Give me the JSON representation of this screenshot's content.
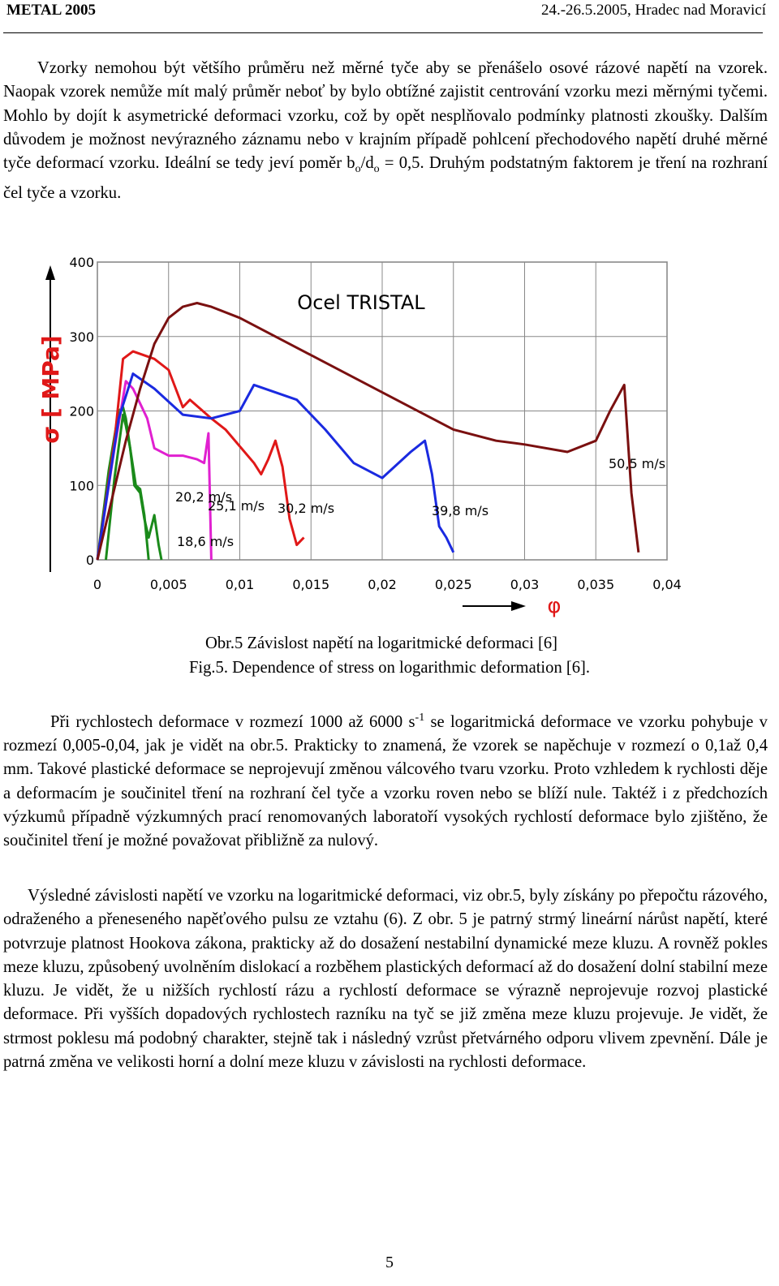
{
  "header": {
    "left": "METAL 2005",
    "right": "24.-26.5.2005, Hradec nad Moravicí"
  },
  "paragraphs": {
    "p1_a": "Vzorky nemohou být většího průměru než měrné tyče aby se přenášelo osové rázové napětí na vzorek. Naopak vzorek nemůže mít malý průměr neboť by bylo obtížné zajistit centrování vzorku mezi měrnými tyčemi. Mohlo by dojít k asymetrické deformaci vzorku, což by opět nesplňovalo podmínky platnosti zkoušky. Dalším důvodem je možnost nevýrazného záznamu nebo v krajním případě pohlcení přechodového napětí druhé měrné tyče deformací vzorku. Ideální se tedy jeví poměr b",
    "p1_sub1": "o",
    "p1_mid": "/d",
    "p1_sub2": "o",
    "p1_b": " = 0,5. Druhým podstatným faktorem je tření na rozhraní čel tyče a vzorku.",
    "p2_a": "Při rychlostech deformace v rozmezí 1000 až 6000 s",
    "p2_sup": "-1",
    "p2_b": " se logaritmická deformace ve vzorku pohybuje v rozmezí 0,005-0,04, jak je vidět na obr.5. Prakticky to znamená, že vzorek se napěchuje  v rozmezí o 0,1až 0,4 mm. Takové plastické deformace se neprojevují změnou válcového tvaru vzorku. Proto vzhledem k rychlosti děje a deformacím je součinitel tření na rozhraní čel tyče a vzorku roven nebo se blíží nule. Taktéž i z předchozích výzkumů případně výzkumných prací renomovaných laboratoří vysokých rychlostí deformace bylo zjištěno, že součinitel tření je možné považovat přibližně za nulový.",
    "p3": "Výsledné závislosti napětí ve vzorku na logaritmické deformaci, viz obr.5, byly získány po přepočtu rázového, odraženého a přeneseného napěťového pulsu ze vztahu (6). Z obr. 5 je patrný strmý lineární nárůst napětí, které potvrzuje platnost Hookova zákona, prakticky až do dosažení nestabilní dynamické meze kluzu. A rovněž pokles meze kluzu, způsobený uvolněním dislokací a rozběhem plastických deformací až do dosažení dolní stabilní meze kluzu. Je vidět, že u nižších rychlostí rázu a rychlostí deformace se výrazně neprojevuje rozvoj plastické deformace. Při vyšších dopadových rychlostech razníku na tyč se již změna meze kluzu projevuje. Je vidět, že strmost poklesu má podobný charakter, stejně tak i následný vzrůst přetvárného odporu vlivem zpevnění. Dále je patrná změna ve velikosti horní a dolní meze kluzu v závislosti na rychlosti deformace."
  },
  "captions": {
    "cz": "Obr.5  Závislost napětí na logaritmické deformaci [6]",
    "en": "Fig.5.  Dependence of stress on logarithmic deformation [6]."
  },
  "page_number": "5",
  "chart_data": {
    "type": "line",
    "title": "Ocel TRISTAL",
    "xlabel": "φ",
    "ylabel": "σ  [ MPa]",
    "xlim": [
      0,
      0.04
    ],
    "ylim": [
      0,
      400
    ],
    "x_ticks": [
      "0",
      "0,005",
      "0,01",
      "0,015",
      "0,02",
      "0,025",
      "0,03",
      "0,035",
      "0,04"
    ],
    "y_ticks": [
      "0",
      "100",
      "200",
      "300",
      "400"
    ],
    "grid": true,
    "colors": {
      "green": "#1a8a1a",
      "magenta": "#e020d0",
      "red": "#e01818",
      "blue": "#1a2ae0",
      "darkred": "#7a1010"
    },
    "series": [
      {
        "name": "18,6 m/s",
        "color": "green",
        "x": [
          0,
          0.0008,
          0.0015,
          0.0018,
          0.002,
          0.0023,
          0.0026,
          0.003,
          0.0033,
          0.0036,
          0.004,
          0.0043,
          0.0045
        ],
        "y": [
          0,
          120,
          200,
          205,
          190,
          150,
          100,
          90,
          55,
          30,
          60,
          20,
          0
        ]
      },
      {
        "name": "20,2 m/s",
        "color": "green",
        "x": [
          0.0006,
          0.0012,
          0.0018,
          0.002,
          0.0023,
          0.0027,
          0.003,
          0.0033,
          0.0036
        ],
        "y": [
          0,
          110,
          195,
          180,
          150,
          100,
          95,
          60,
          0
        ]
      },
      {
        "name": "25,1 m/s",
        "color": "magenta",
        "x": [
          0,
          0.0012,
          0.002,
          0.0025,
          0.003,
          0.0035,
          0.004,
          0.005,
          0.006,
          0.007,
          0.0075,
          0.0078,
          0.008
        ],
        "y": [
          0,
          150,
          240,
          230,
          210,
          190,
          150,
          140,
          140,
          135,
          130,
          170,
          0
        ]
      },
      {
        "name": "30,2 m/s",
        "color": "red",
        "x": [
          0,
          0.0012,
          0.0018,
          0.0025,
          0.004,
          0.005,
          0.006,
          0.0065,
          0.008,
          0.009,
          0.011,
          0.0115,
          0.012,
          0.0125,
          0.013,
          0.0135,
          0.014,
          0.0145
        ],
        "y": [
          0,
          160,
          270,
          280,
          270,
          255,
          205,
          215,
          190,
          175,
          130,
          115,
          135,
          160,
          125,
          55,
          20,
          30
        ]
      },
      {
        "name": "39,8 m/s",
        "color": "blue",
        "x": [
          0,
          0.0015,
          0.0025,
          0.004,
          0.006,
          0.008,
          0.01,
          0.011,
          0.014,
          0.016,
          0.018,
          0.02,
          0.022,
          0.023,
          0.0235,
          0.024,
          0.0245,
          0.025
        ],
        "y": [
          0,
          190,
          250,
          230,
          195,
          190,
          200,
          235,
          215,
          175,
          130,
          110,
          145,
          160,
          115,
          45,
          30,
          10
        ]
      },
      {
        "name": "50,5 m/s",
        "color": "darkred",
        "x": [
          0,
          0.002,
          0.003,
          0.004,
          0.005,
          0.006,
          0.007,
          0.008,
          0.01,
          0.015,
          0.02,
          0.025,
          0.028,
          0.03,
          0.033,
          0.035,
          0.036,
          0.037,
          0.0375,
          0.038
        ],
        "y": [
          0,
          160,
          230,
          290,
          325,
          340,
          345,
          340,
          325,
          275,
          225,
          175,
          160,
          155,
          145,
          160,
          200,
          235,
          90,
          10
        ]
      }
    ],
    "annotations": [
      "20,2 m/s",
      "18,6 m/s",
      "25,1 m/s",
      "30,2 m/s",
      "39,8 m/s",
      "50,5 m/s"
    ]
  }
}
